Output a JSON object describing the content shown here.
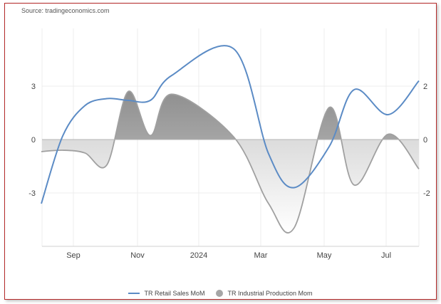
{
  "source": "Source: tradingeconomics.com",
  "colors": {
    "retail": "#5b8bc5",
    "industrial_line": "#a0a0a0",
    "frame": "#b52a2a",
    "grid": "#ececec"
  },
  "chart_data": {
    "type": "line",
    "x_ticks": [
      "Sep",
      "Nov",
      "2024",
      "Mar",
      "May",
      "Jul"
    ],
    "left_axis": {
      "ticks": [
        "3",
        "0",
        "-3"
      ],
      "ylim": [
        -6,
        6
      ]
    },
    "right_axis": {
      "ticks": [
        "2",
        "0",
        "-2"
      ],
      "ylim": [
        -4,
        4
      ]
    },
    "grid": true,
    "legend_position": "bottom",
    "series": [
      {
        "name": "TR Retail Sales MoM",
        "type": "line",
        "axis": "left",
        "x": [
          "Jul 2023",
          "Aug 2023",
          "Sep 2023",
          "Oct 2023",
          "Nov 2023",
          "Dec 2023",
          "Jan 2024",
          "Feb 2024",
          "Mar 2024",
          "Apr 2024",
          "May 2024",
          "Jun 2024",
          "Jul 2024",
          "Aug 2024"
        ],
        "values": [
          -3.6,
          0.2,
          1.9,
          2.3,
          2.2,
          2.2,
          3.6,
          5.1,
          -0.8,
          -2.7,
          -0.4,
          2.8,
          1.4,
          3.3
        ]
      },
      {
        "name": "TR Industrial Production Mom",
        "type": "area",
        "axis": "right",
        "x": [
          "Jul 2023",
          "Aug 2023",
          "Sep 2023",
          "Oct 2023",
          "Nov 2023",
          "Dec 2023",
          "Jan 2024",
          "Feb 2024",
          "Mar 2024",
          "Apr 2024",
          "May 2024",
          "Jun 2024",
          "Jul 2024",
          "Aug 2024"
        ],
        "values": [
          -0.45,
          -0.4,
          -0.5,
          -0.95,
          1.8,
          0.15,
          1.7,
          0.1,
          -2.4,
          -3.3,
          1.2,
          -1.7,
          0.2,
          -1.1
        ]
      }
    ]
  }
}
